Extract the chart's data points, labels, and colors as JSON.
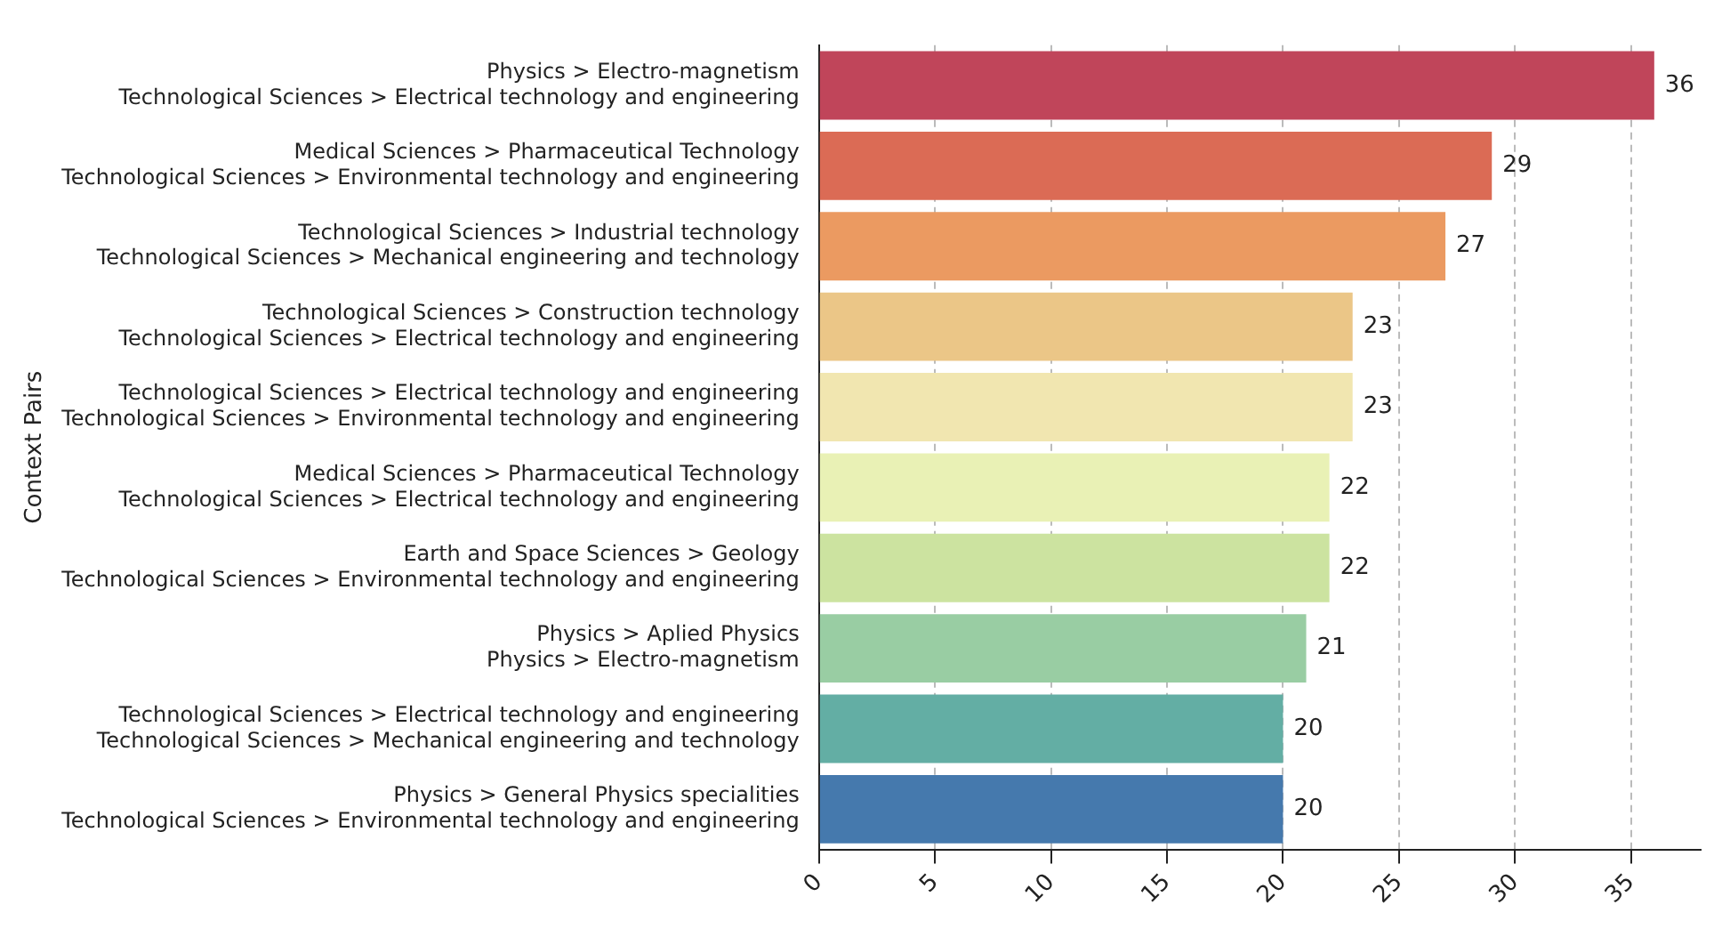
{
  "chart_data": {
    "type": "bar",
    "orientation": "horizontal",
    "ylabel": "Context Pairs",
    "categories": [
      "Physics > Electro-magnetism\nTechnological Sciences > Electrical technology and engineering",
      "Medical Sciences > Pharmaceutical Technology\nTechnological Sciences > Environmental technology and engineering",
      "Technological Sciences > Industrial technology\nTechnological Sciences > Mechanical engineering and technology",
      "Technological Sciences > Construction technology\nTechnological Sciences > Electrical technology and engineering",
      "Technological Sciences > Electrical technology and engineering\nTechnological Sciences > Environmental technology and engineering",
      "Medical Sciences > Pharmaceutical Technology\nTechnological Sciences > Electrical technology and engineering",
      "Earth and Space Sciences > Geology\nTechnological Sciences > Environmental technology and engineering",
      "Physics > Aplied Physics\nPhysics > Electro-magnetism",
      "Technological Sciences > Electrical technology and engineering\nTechnological Sciences > Mechanical engineering and technology",
      "Physics > General Physics specialities\nTechnological Sciences > Environmental technology and engineering"
    ],
    "values": [
      36,
      29,
      27,
      23,
      23,
      22,
      22,
      21,
      20,
      20
    ],
    "colors": [
      "#c0455a",
      "#db6b55",
      "#eb9a61",
      "#ebc687",
      "#f1e6b0",
      "#e9f1b5",
      "#cce3a0",
      "#99cda3",
      "#63aea4",
      "#4579ad"
    ],
    "xlim": [
      0,
      38
    ],
    "xticks": [
      0,
      5,
      10,
      15,
      20,
      25,
      30,
      35
    ],
    "grid": "x",
    "data_labels": true,
    "legend": false
  }
}
